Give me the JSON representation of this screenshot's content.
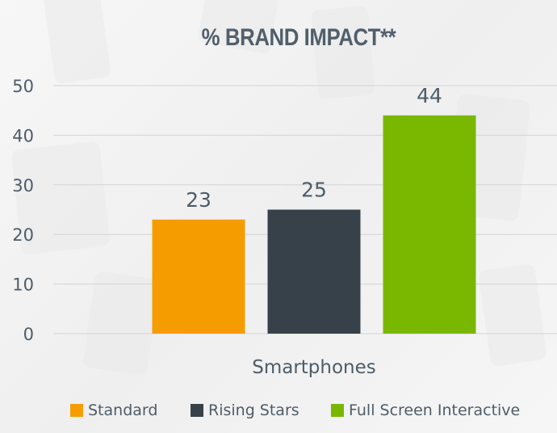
{
  "chart_data": {
    "type": "bar",
    "title": "% BRAND IMPACT**",
    "categories": [
      "Smartphones"
    ],
    "series": [
      {
        "name": "Standard",
        "values": [
          23
        ],
        "color": "#f59d00"
      },
      {
        "name": "Rising Stars",
        "values": [
          25
        ],
        "color": "#37414a"
      },
      {
        "name": "Full Screen Interactive",
        "values": [
          44
        ],
        "color": "#7ab800"
      }
    ],
    "xlabel": "",
    "ylabel": "",
    "ylim": [
      0,
      50
    ],
    "yticks": [
      "0",
      "10",
      "20",
      "30",
      "40",
      "50"
    ],
    "grid": true,
    "legend_position": "bottom",
    "data_labels": true
  },
  "colors": {
    "text": "#4e5c68",
    "grid": "#d4d4d4",
    "title": "#515f6b"
  }
}
